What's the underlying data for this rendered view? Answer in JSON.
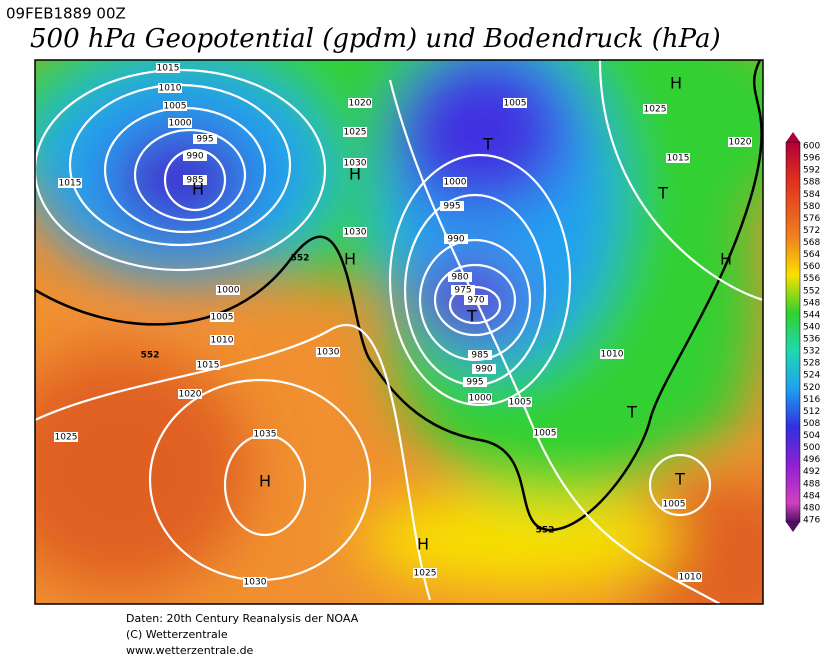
{
  "header": {
    "date": "09FEB1889 00Z",
    "title": "500 hPa Geopotential (gpdm) und Bodendruck (hPa)"
  },
  "isobar_labels": [
    "1015",
    "1010",
    "1005",
    "1000",
    "995",
    "990",
    "985",
    "1015",
    "1020",
    "1025",
    "1030",
    "1030",
    "1000",
    "1005",
    "1010",
    "1015",
    "1020",
    "1025",
    "1030",
    "1035",
    "1030",
    "1025",
    "1005",
    "1025",
    "1015",
    "1020",
    "1000",
    "995",
    "990",
    "980",
    "975",
    "970",
    "985",
    "990",
    "995",
    "1000",
    "1005",
    "1005",
    "1010",
    "1005",
    "1010"
  ],
  "geopotential_labels": [
    "552",
    "552",
    "552"
  ],
  "pressure_centers": [
    "H",
    "T",
    "H",
    "H",
    "H",
    "T",
    "H",
    "T",
    "T",
    "T",
    "H",
    "H"
  ],
  "legend": {
    "levels": [
      "600",
      "596",
      "592",
      "588",
      "584",
      "580",
      "576",
      "572",
      "568",
      "564",
      "560",
      "556",
      "552",
      "548",
      "544",
      "540",
      "536",
      "532",
      "528",
      "524",
      "520",
      "516",
      "512",
      "508",
      "504",
      "500",
      "496",
      "492",
      "488",
      "484",
      "480",
      "476"
    ]
  },
  "footer": {
    "source": "Daten: 20th Century Reanalysis der NOAA",
    "copyright": "(C) Wetterzentrale",
    "url": "www.wetterzentrale.de"
  }
}
